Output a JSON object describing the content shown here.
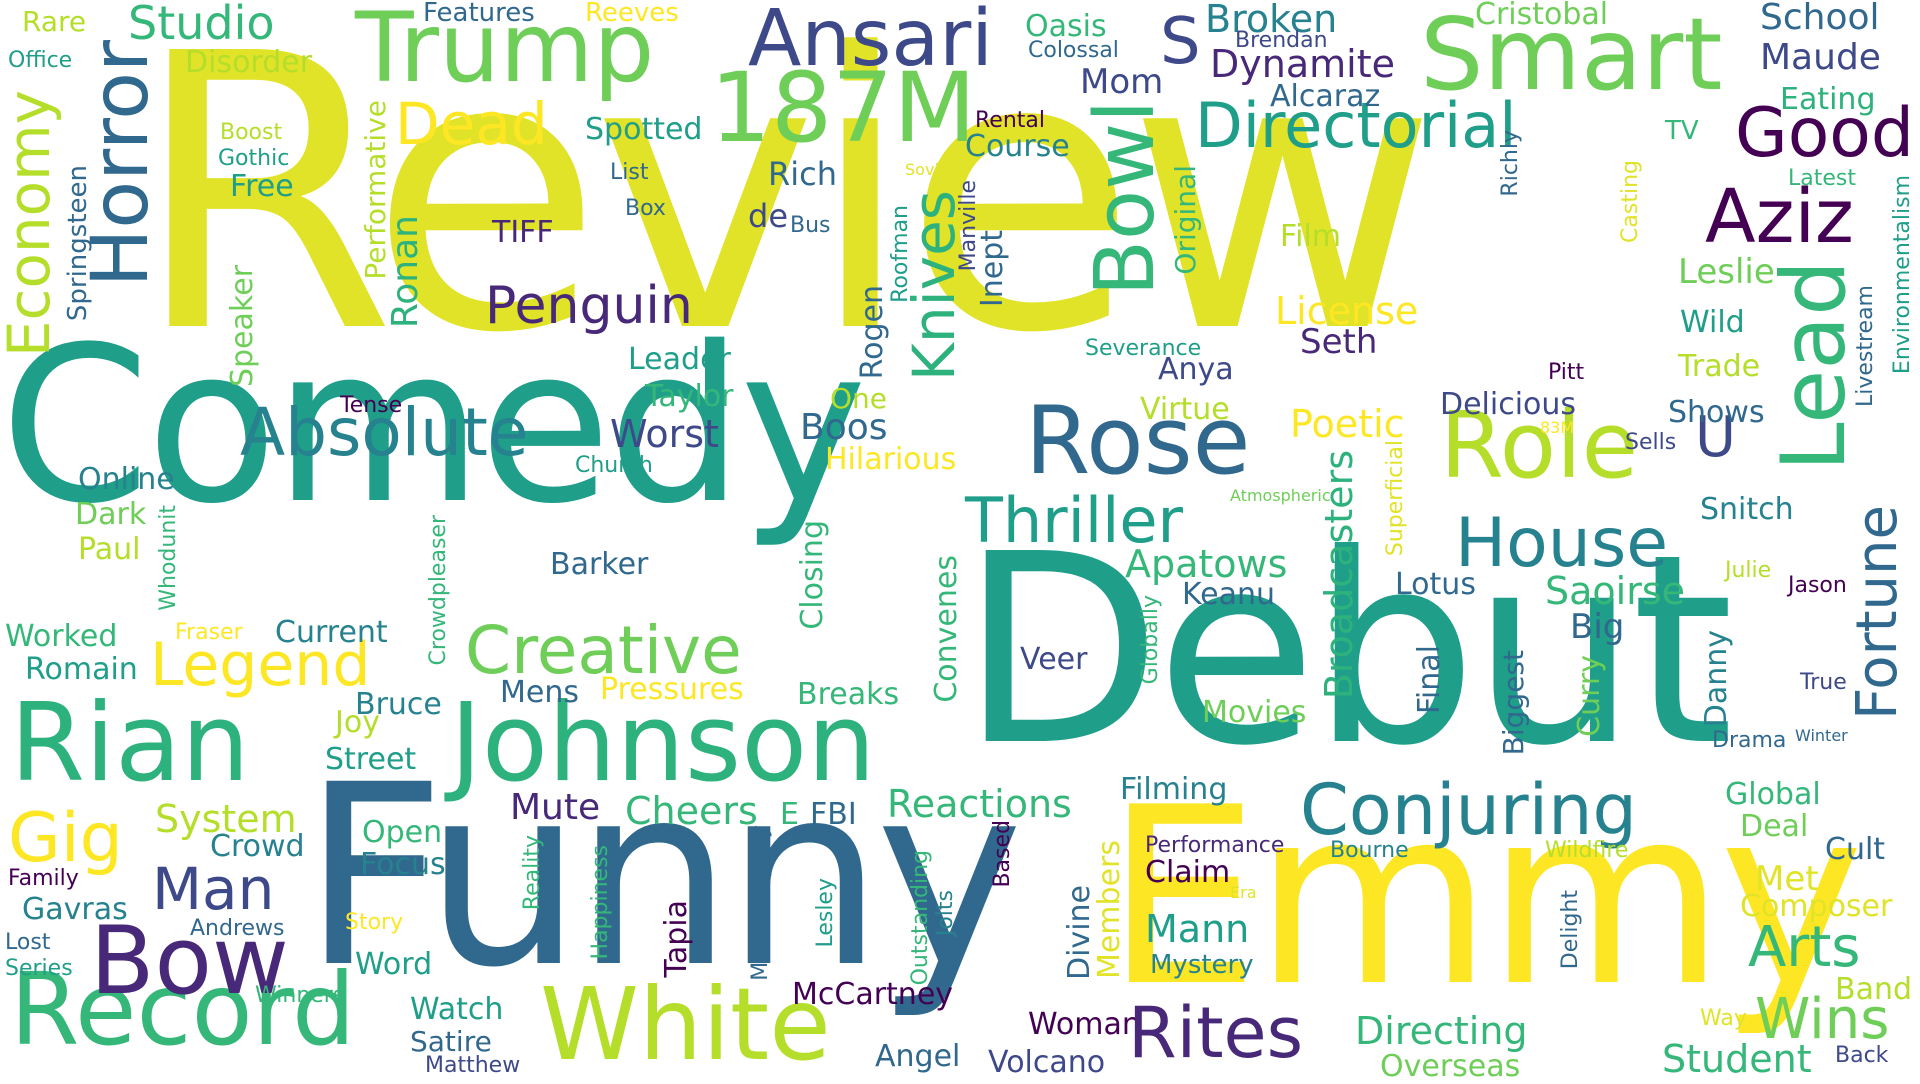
{
  "palette": {
    "yellow": "#e1e328",
    "gold": "#fde725",
    "lime": "#b5de2b",
    "green": "#6ece58",
    "mint": "#35b779",
    "teal": "#1f9e89",
    "cyan": "#26828e",
    "blue": "#31688e",
    "indigo": "#3e4989",
    "purple": "#482878",
    "dark": "#440154"
  },
  "words": [
    "Review",
    "Comedy",
    "Debut",
    "Funny",
    "Emmy",
    "Rian",
    "Johnson",
    "Record",
    "White",
    "Smart",
    "Trump",
    "Ansari",
    "187M",
    "Horror",
    "Economy",
    "Bowl",
    "Role",
    "Lead",
    "Rose",
    "Aziz",
    "Good",
    "Directorial",
    "Absolute",
    "Thriller",
    "House",
    "Conjuring",
    "Fortune",
    "Creative",
    "Legend",
    "Bow",
    "Man",
    "Gig",
    "Knives",
    "Penguin",
    "Dead",
    "Studio",
    "Broken",
    "Dynamite",
    "School",
    "Maude",
    "Cristobal",
    "Eating",
    "Alcaraz",
    "Brendan",
    "Mom",
    "Colossal",
    "Oasis",
    "Features",
    "Reeves",
    "Rare",
    "Office",
    "Disorder",
    "Spotted",
    "Course",
    "Rental",
    "Rich",
    "List",
    "Box",
    "de",
    "Bus",
    "Soviet",
    "TIFF",
    "Boost",
    "Gothic",
    "Free",
    "Springsteen",
    "Speaker",
    "Performative",
    "Ronan",
    "Rogen",
    "Roofman",
    "Manville",
    "Inept",
    "Original",
    "Severance",
    "Film",
    "License",
    "Seth",
    "Anya",
    "Leslie",
    "Wild",
    "Trade",
    "Pitt",
    "Shows",
    "Sells",
    "83M",
    "Delicious",
    "Virtue",
    "Poetic",
    "Hilarious",
    "Boos",
    "One",
    "Taylor",
    "Leader",
    "Worst",
    "Church",
    "Tense",
    "Online",
    "Dark",
    "Paul",
    "Whodunit",
    "Fraser",
    "Current",
    "Worked",
    "Romain",
    "Crowdpleaser",
    "Barker",
    "Mens",
    "Pressures",
    "Breaks",
    "Closing",
    "Convenes",
    "Broadcasters",
    "Apatows",
    "Keanu",
    "Lotus",
    "Saoirse",
    "Big",
    "Final",
    "Biggest",
    "Curry",
    "Danny",
    "Drama",
    "Winter",
    "True",
    "Jason",
    "Julie",
    "Snitch",
    "Environmentalism",
    "Livestream",
    "Richly",
    "Casting",
    "Latest",
    "TV",
    "Atmospheric",
    "Superficial",
    "Globally",
    "Veer",
    "Bruce",
    "Joy",
    "Street",
    "System",
    "Crowd",
    "Open",
    "Focus",
    "Family",
    "Gavras",
    "Andrews",
    "Lost",
    "Series",
    "Story",
    "Winners",
    "Word",
    "Watch",
    "Satire",
    "Matthew",
    "Mute",
    "Cheers",
    "E",
    "FBI",
    "Reactions",
    "Filming",
    "Performance",
    "Bourne",
    "Claim",
    "Era",
    "Mann",
    "Mystery",
    "Woman",
    "Divine",
    "Members",
    "Based",
    "Outstanding",
    "Jolts",
    "Happiness",
    "Reality",
    "McConaughey",
    "Tapia",
    "Lesley",
    "McCartney",
    "Angel",
    "Volcano",
    "Rites",
    "Directing",
    "Overseas",
    "Delight",
    "Wildfire",
    "Cult",
    "Met",
    "Composer",
    "Arts",
    "Band",
    "Wins",
    "Way",
    "Student",
    "Back",
    "Global",
    "Deal",
    "Movies",
    "S",
    "U"
  ]
}
